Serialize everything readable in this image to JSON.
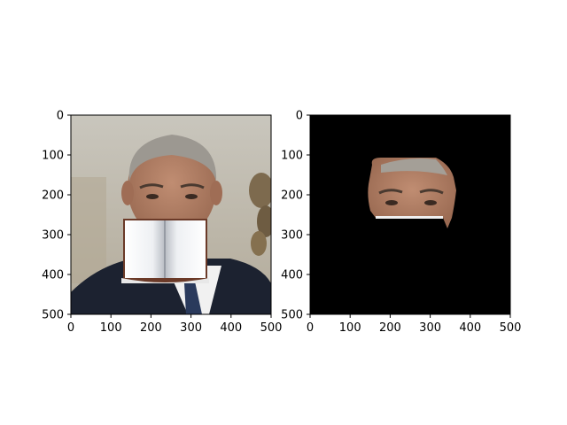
{
  "chart_data": [
    {
      "type": "image",
      "title": "",
      "xlabel": "",
      "ylabel": "",
      "xlim": [
        0,
        500
      ],
      "ylim": [
        500,
        0
      ],
      "xticks": [
        0,
        100,
        200,
        300,
        400,
        500
      ],
      "yticks": [
        0,
        100,
        200,
        300,
        400,
        500
      ],
      "xtick_labels": [
        "0",
        "100",
        "200",
        "300",
        "400",
        "500"
      ],
      "ytick_labels": [
        "0",
        "100",
        "200",
        "300",
        "400",
        "500"
      ],
      "content": "occluded face photo",
      "occluder": {
        "object": "open book",
        "x": [
          130,
          340
        ],
        "y": [
          260,
          420
        ]
      }
    },
    {
      "type": "image",
      "title": "",
      "xlabel": "",
      "ylabel": "",
      "xlim": [
        0,
        500
      ],
      "ylim": [
        500,
        0
      ],
      "xticks": [
        0,
        100,
        200,
        300,
        400,
        500
      ],
      "yticks": [
        0,
        100,
        200,
        300,
        400,
        500
      ],
      "xtick_labels": [
        "0",
        "100",
        "200",
        "300",
        "400",
        "500"
      ],
      "ytick_labels": [
        "0",
        "100",
        "200",
        "300",
        "400",
        "500"
      ],
      "content": "segmented visible face region",
      "background_color": "#000000",
      "visible_region": {
        "x": [
          145,
          360
        ],
        "y": [
          105,
          285
        ]
      }
    }
  ],
  "colors": {
    "background": "#ffffff",
    "mask_background": "#000000",
    "skin": "#b07e66",
    "hair": "#9a9690",
    "wall": "#c4c1b8",
    "suit": "#1c2230",
    "book_page": "#f3f4f6",
    "book_cover": "#6b3a28"
  }
}
